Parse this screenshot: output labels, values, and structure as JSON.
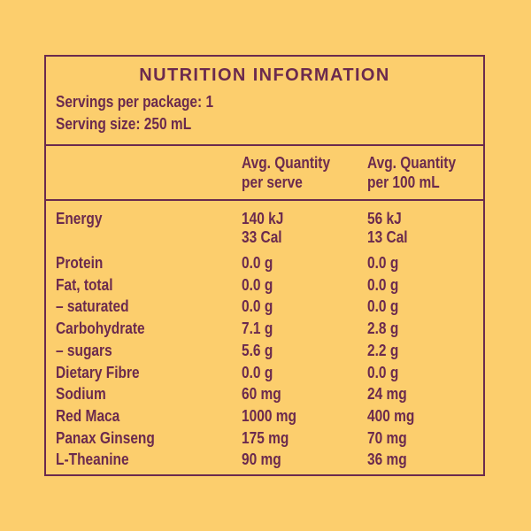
{
  "colors": {
    "background": "#FCCE6D",
    "text": "#6B2A4E",
    "border": "#6B2A4E"
  },
  "panel": {
    "title": "NUTRITION INFORMATION",
    "servings_per_package": "Servings per package: 1",
    "serving_size": "Serving size: 250 mL"
  },
  "table": {
    "columns": [
      {
        "line1": "Avg. Quantity",
        "line2": "per serve"
      },
      {
        "line1": "Avg. Quantity",
        "line2": "per 100 mL"
      }
    ],
    "rows": [
      {
        "label": "Energy",
        "per_serve": "140 kJ",
        "per_100ml": "56 kJ"
      },
      {
        "label": "",
        "per_serve": "33 Cal",
        "per_100ml": "13 Cal"
      },
      {
        "label": "Protein",
        "per_serve": "0.0 g",
        "per_100ml": "0.0 g"
      },
      {
        "label": "Fat, total",
        "per_serve": "0.0 g",
        "per_100ml": "0.0 g"
      },
      {
        "label": "– saturated",
        "per_serve": "0.0 g",
        "per_100ml": "0.0 g"
      },
      {
        "label": "Carbohydrate",
        "per_serve": "7.1 g",
        "per_100ml": "2.8 g"
      },
      {
        "label": "– sugars",
        "per_serve": "5.6 g",
        "per_100ml": "2.2 g"
      },
      {
        "label": "Dietary Fibre",
        "per_serve": "0.0 g",
        "per_100ml": "0.0 g"
      },
      {
        "label": "Sodium",
        "per_serve": "60 mg",
        "per_100ml": "24 mg"
      },
      {
        "label": "Red Maca",
        "per_serve": "1000 mg",
        "per_100ml": "400 mg"
      },
      {
        "label": "Panax Ginseng",
        "per_serve": "175 mg",
        "per_100ml": "70 mg"
      },
      {
        "label": "L-Theanine",
        "per_serve": "90 mg",
        "per_100ml": "36 mg"
      }
    ]
  }
}
